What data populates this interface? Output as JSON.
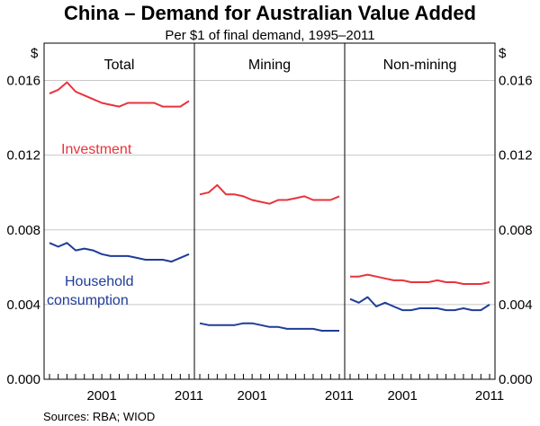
{
  "chart_data": {
    "type": "line",
    "title": "China – Demand for Australian Value Added",
    "subtitle": "Per $1 of final demand, 1995–2011",
    "ylabel": "$",
    "ylim": [
      0,
      0.018
    ],
    "yticks": [
      "0.000",
      "0.004",
      "0.008",
      "0.012",
      "0.016"
    ],
    "ytick_values": [
      0,
      0.004,
      0.008,
      0.012,
      0.016
    ],
    "xlim": [
      1995,
      2011
    ],
    "xtick_labels": [
      "2001",
      "2011"
    ],
    "xtick_label_years": [
      2001,
      2011
    ],
    "x": [
      1995,
      1996,
      1997,
      1998,
      1999,
      2000,
      2001,
      2002,
      2003,
      2004,
      2005,
      2006,
      2007,
      2008,
      2009,
      2010,
      2011
    ],
    "grid": true,
    "source": "Sources:  RBA; WIOD",
    "colors": {
      "investment": "#e8333b",
      "household": "#1f3c99",
      "grid": "#c8c8c8",
      "axis": "#000000"
    },
    "panels": [
      {
        "title": "Total",
        "annotations": [
          {
            "text": "Investment",
            "color": "#e8333b"
          },
          {
            "text": "Household",
            "color": "#1f3c99"
          },
          {
            "text": "consumption",
            "color": "#1f3c99"
          }
        ],
        "series": [
          {
            "name": "Investment",
            "color": "#e8333b",
            "values": [
              0.0153,
              0.0155,
              0.0159,
              0.0154,
              0.0152,
              0.015,
              0.0148,
              0.0147,
              0.0146,
              0.0148,
              0.0148,
              0.0148,
              0.0148,
              0.0146,
              0.0146,
              0.0146,
              0.0149
            ]
          },
          {
            "name": "Household consumption",
            "color": "#1f3c99",
            "values": [
              0.0073,
              0.0071,
              0.0073,
              0.0069,
              0.007,
              0.0069,
              0.0067,
              0.0066,
              0.0066,
              0.0066,
              0.0065,
              0.0064,
              0.0064,
              0.0064,
              0.0063,
              0.0065,
              0.0067
            ]
          }
        ]
      },
      {
        "title": "Mining",
        "annotations": [],
        "series": [
          {
            "name": "Investment",
            "color": "#e8333b",
            "values": [
              0.0099,
              0.01,
              0.0104,
              0.0099,
              0.0099,
              0.0098,
              0.0096,
              0.0095,
              0.0094,
              0.0096,
              0.0096,
              0.0097,
              0.0098,
              0.0096,
              0.0096,
              0.0096,
              0.0098
            ]
          },
          {
            "name": "Household consumption",
            "color": "#1f3c99",
            "values": [
              0.003,
              0.0029,
              0.0029,
              0.0029,
              0.0029,
              0.003,
              0.003,
              0.0029,
              0.0028,
              0.0028,
              0.0027,
              0.0027,
              0.0027,
              0.0027,
              0.0026,
              0.0026,
              0.0026
            ]
          }
        ]
      },
      {
        "title": "Non-mining",
        "annotations": [],
        "series": [
          {
            "name": "Investment",
            "color": "#e8333b",
            "values": [
              0.0055,
              0.0055,
              0.0056,
              0.0055,
              0.0054,
              0.0053,
              0.0053,
              0.0052,
              0.0052,
              0.0052,
              0.0053,
              0.0052,
              0.0052,
              0.0051,
              0.0051,
              0.0051,
              0.0052
            ]
          },
          {
            "name": "Household consumption",
            "color": "#1f3c99",
            "values": [
              0.0043,
              0.0041,
              0.0044,
              0.0039,
              0.0041,
              0.0039,
              0.0037,
              0.0037,
              0.0038,
              0.0038,
              0.0038,
              0.0037,
              0.0037,
              0.0038,
              0.0037,
              0.0037,
              0.004
            ]
          }
        ]
      }
    ]
  }
}
